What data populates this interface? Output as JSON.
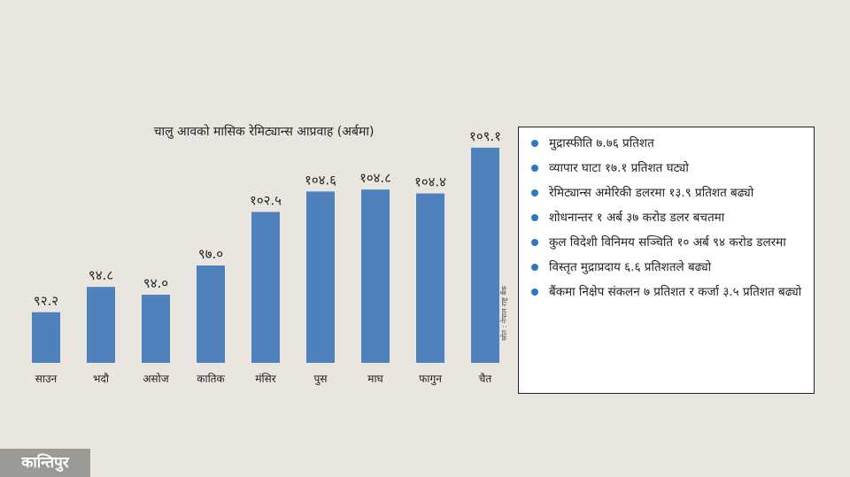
{
  "chart_data": {
    "type": "bar",
    "title": "चालु आवको मासिक रेमिट्यान्स आप्रवाह (अर्बमा)",
    "categories": [
      "साउन",
      "भदौ",
      "असोज",
      "कातिक",
      "मंसिर",
      "पुस",
      "माघ",
      "फागुन",
      "चैत"
    ],
    "values": [
      92.2,
      94.8,
      94.0,
      97.0,
      102.5,
      104.6,
      104.8,
      104.4,
      109.1
    ],
    "value_labels": [
      "९२.२",
      "९४.८",
      "९४.०",
      "९७.०",
      "१०२.५",
      "१०४.६",
      "१०४.८",
      "१०४.४",
      "१०९.१"
    ],
    "ylim": [
      87,
      110
    ],
    "grid": false,
    "bar_color": "#4f81bd",
    "source": "स्रोत : नेपाल राष्ट्र बैंक"
  },
  "info_box": {
    "items": [
      "मुद्रास्फीति ७.७६ प्रतिशत",
      "व्यापार घाटा १७.१ प्रतिशत घट्यो",
      "रेमिट्यान्स अमेरिकी डलरमा १३.९ प्रतिशत बढ्यो",
      "शोधनान्तर १ अर्ब ३७ करोड डलर बचतमा",
      "कुल विदेशी विनिमय सञ्चिति १० अर्ब ९४ करोड डलरमा",
      "विस्तृत मुद्राप्रदाय ६.६ प्रतिशतले बढ्यो",
      "बैंकमा निक्षेप संकलन ७ प्रतिशत र कर्जा ३.५ प्रतिशत बढ्यो"
    ],
    "bullet_color": "#2e78c0"
  },
  "logo": {
    "text": "कान्तिपुर"
  }
}
